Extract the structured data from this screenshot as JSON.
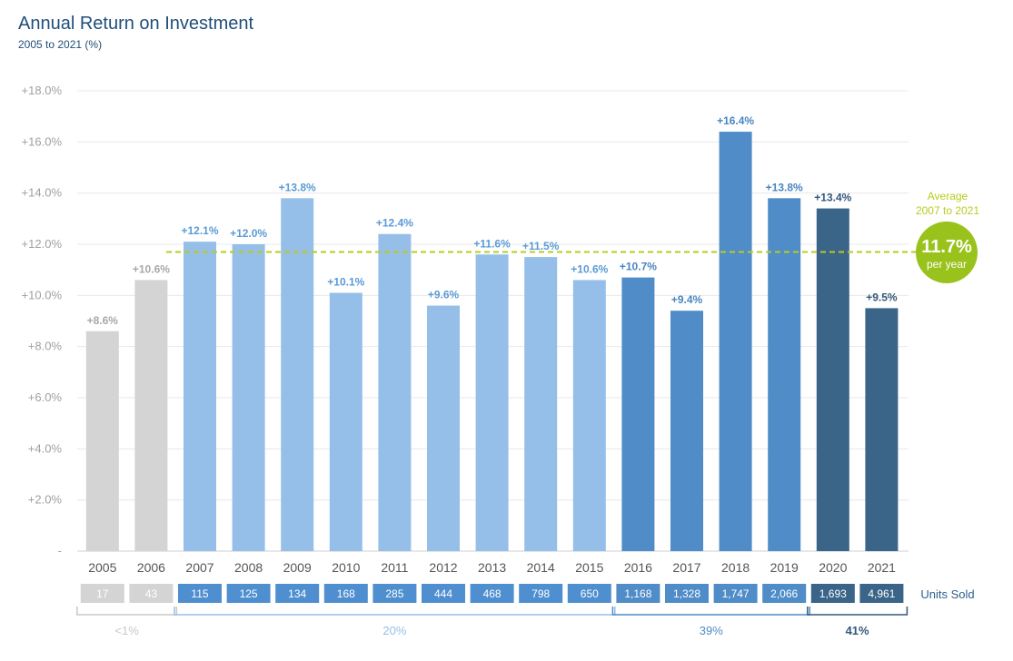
{
  "title": "Annual Return on Investment",
  "subtitle": "2005 to 2021 (%)",
  "colors": {
    "gray": "#d4d4d4",
    "light_blue": "#95bfe8",
    "mid_blue": "#4f8cc8",
    "dark_blue": "#3a6488",
    "average_line": "#b8cc1c",
    "average_circle": "#99c31c",
    "gridline": "#e8e8e8",
    "tick_text": "#a0a0a0"
  },
  "chart_data": {
    "type": "bar",
    "title": "Annual Return on Investment",
    "subtitle": "2005 to 2021 (%)",
    "categories": [
      "2005",
      "2006",
      "2007",
      "2008",
      "2009",
      "2010",
      "2011",
      "2012",
      "2013",
      "2014",
      "2015",
      "2016",
      "2017",
      "2018",
      "2019",
      "2020",
      "2021"
    ],
    "values": [
      8.6,
      10.6,
      12.1,
      12.0,
      13.8,
      10.1,
      12.4,
      9.6,
      11.6,
      11.5,
      10.6,
      10.7,
      9.4,
      16.4,
      13.8,
      13.4,
      9.5
    ],
    "value_labels": [
      "+8.6%",
      "+10.6%",
      "+12.1%",
      "+12.0%",
      "+13.8%",
      "+10.1%",
      "+12.4%",
      "+9.6%",
      "+11.6%",
      "+11.5%",
      "+10.6%",
      "+10.7%",
      "+9.4%",
      "+16.4%",
      "+13.8%",
      "+13.4%",
      "+9.5%"
    ],
    "groups": [
      "gray",
      "gray",
      "light_blue",
      "light_blue",
      "light_blue",
      "light_blue",
      "light_blue",
      "light_blue",
      "light_blue",
      "light_blue",
      "light_blue",
      "mid_blue",
      "mid_blue",
      "mid_blue",
      "mid_blue",
      "dark_blue",
      "dark_blue"
    ],
    "ylim": [
      0,
      18
    ],
    "yticks": [
      0,
      2,
      4,
      6,
      8,
      10,
      12,
      14,
      16,
      18
    ],
    "ytick_labels": [
      "-",
      "+2.0%",
      "+4.0%",
      "+6.0%",
      "+8.0%",
      "+10.0%",
      "+12.0%",
      "+14.0%",
      "+16.0%",
      "+18.0%"
    ],
    "grid": true,
    "average": {
      "value": 11.7,
      "label_line1": "Average",
      "label_line2": "2007 to 2021",
      "value_label": "11.7%",
      "per_label": "per year"
    },
    "units_sold": {
      "label": "Units Sold",
      "values": [
        "17",
        "43",
        "115",
        "125",
        "134",
        "168",
        "285",
        "444",
        "468",
        "798",
        "650",
        "1,168",
        "1,328",
        "1,747",
        "2,066",
        "1,693",
        "4,961"
      ]
    },
    "brackets": [
      {
        "label": "<1%",
        "group": "gray"
      },
      {
        "label": "20%",
        "group": "light_blue"
      },
      {
        "label": "39%",
        "group": "mid_blue"
      },
      {
        "label": "41%",
        "group": "dark_blue"
      }
    ]
  }
}
